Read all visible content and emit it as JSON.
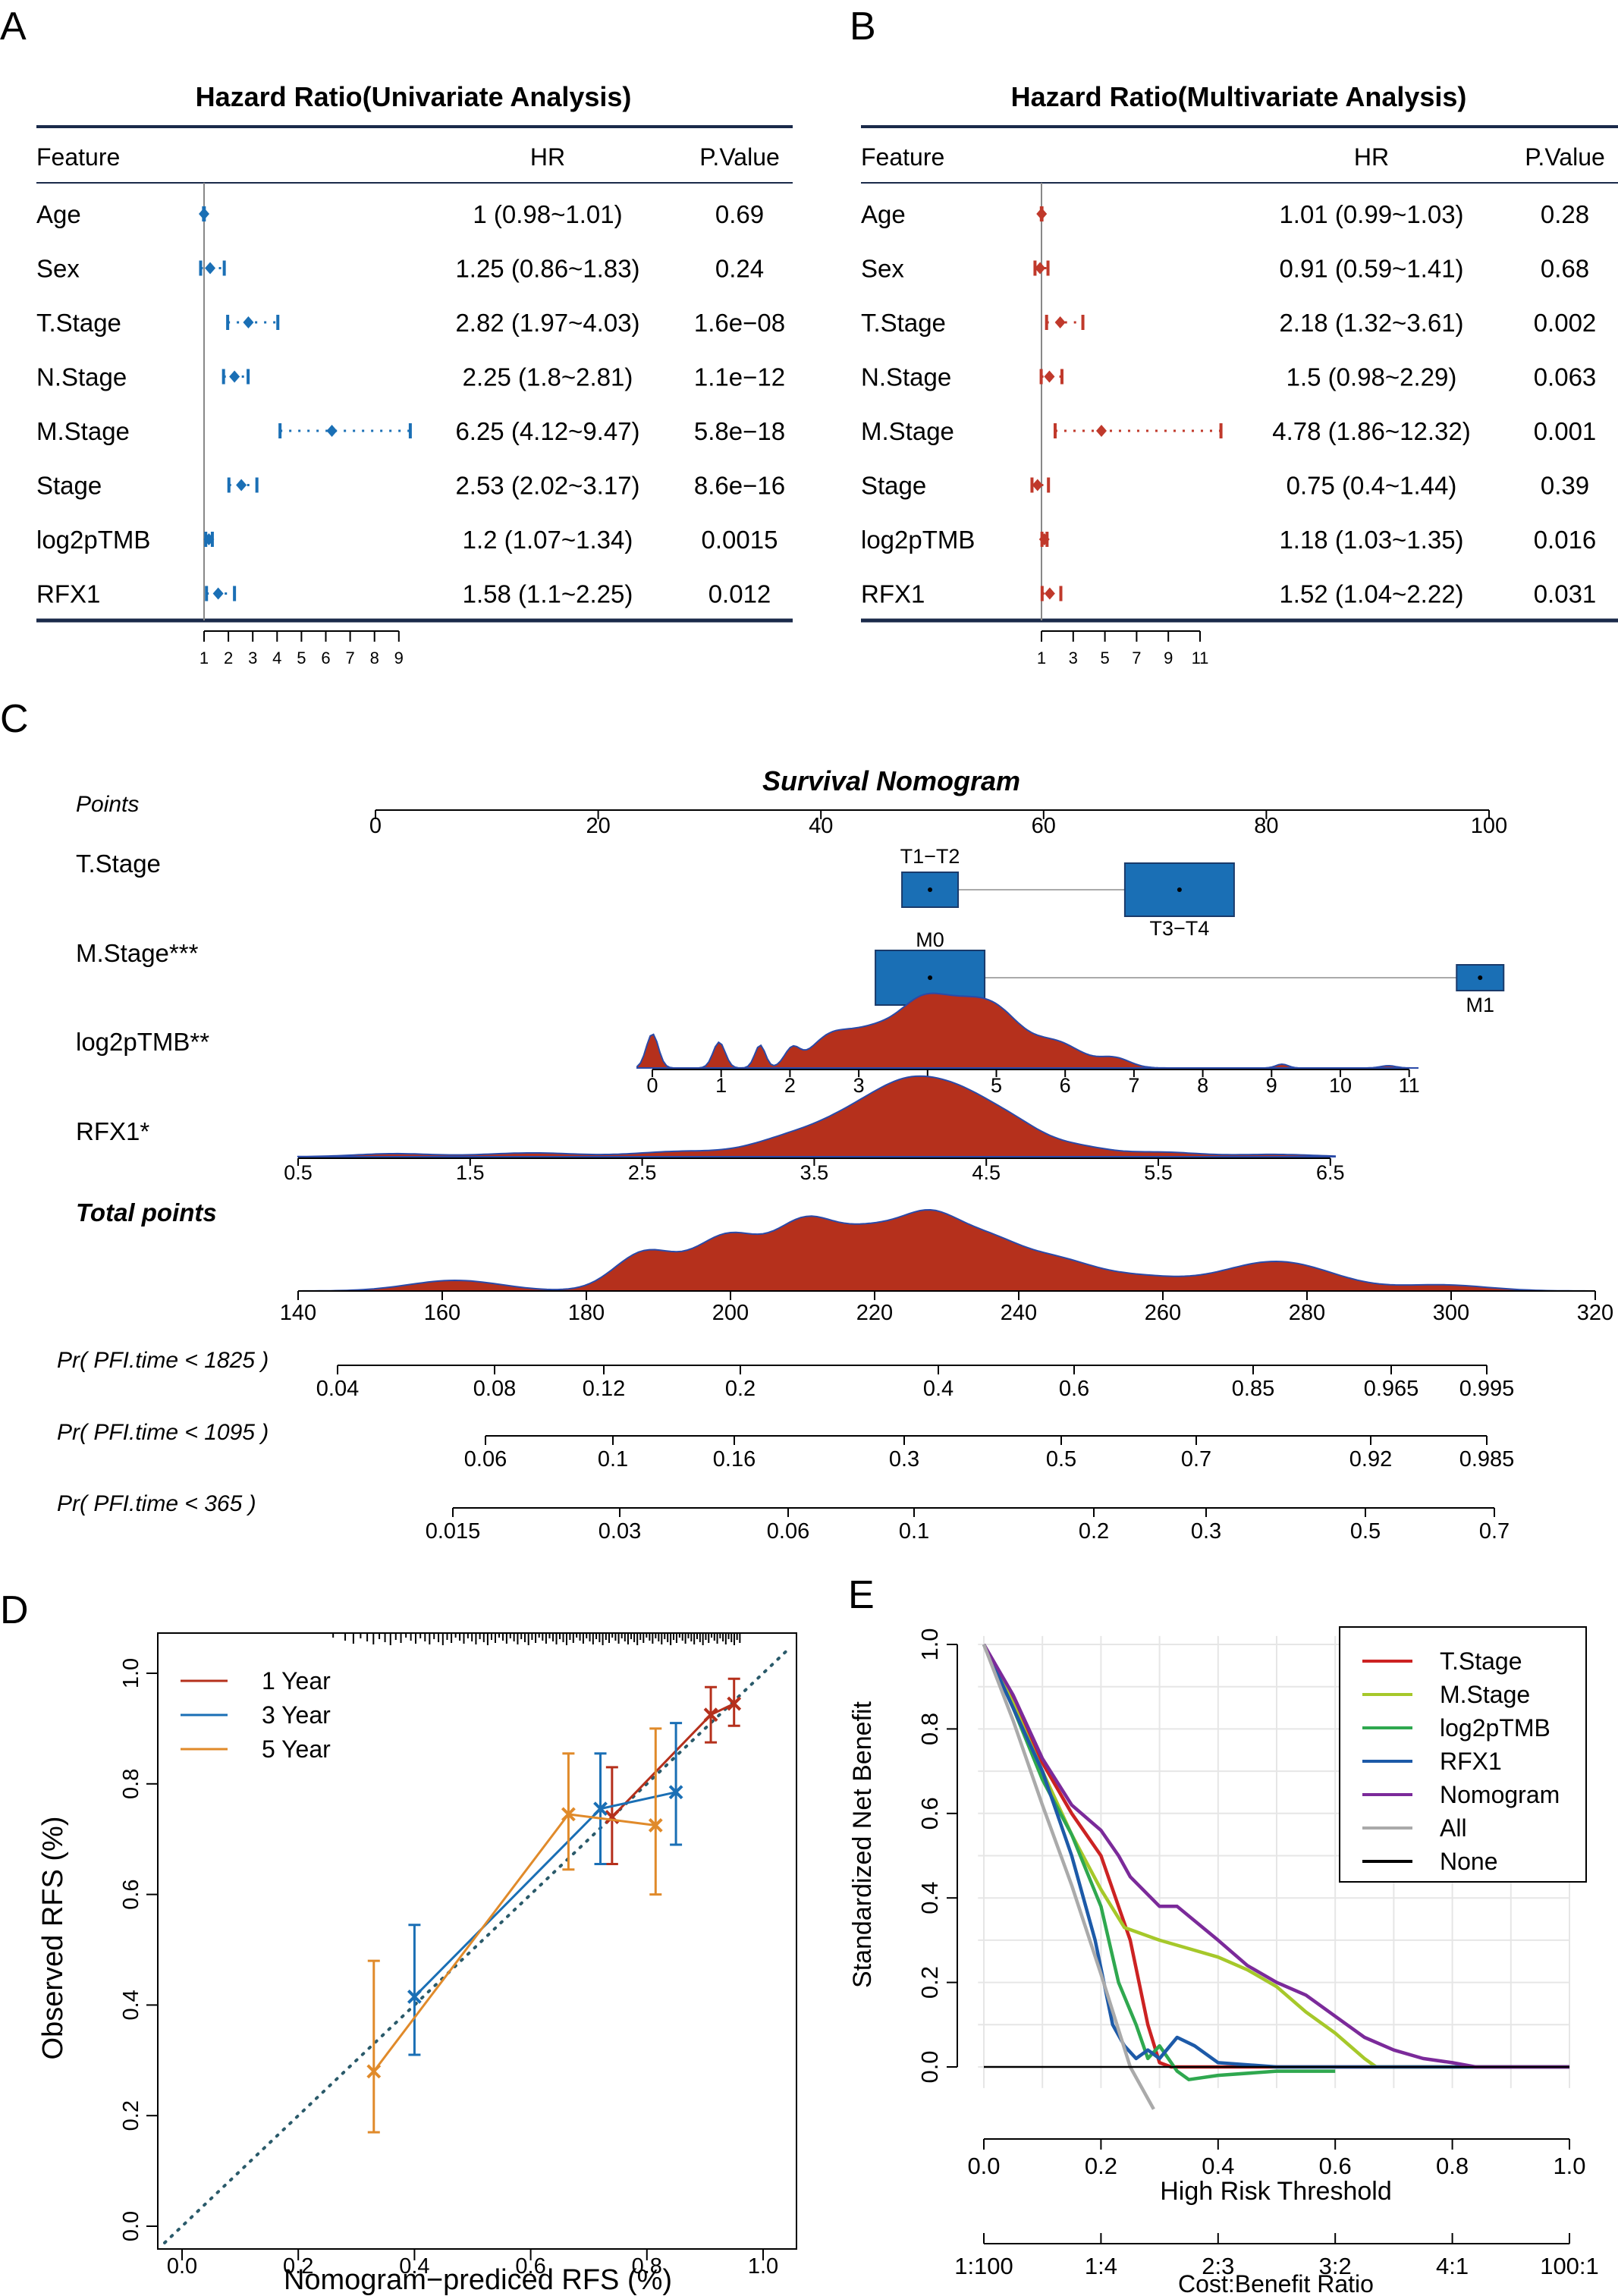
{
  "panel_letters": [
    "A",
    "B",
    "C",
    "D",
    "E"
  ],
  "chart_data": [
    {
      "type": "table",
      "panel": "A",
      "title": "Hazard Ratio(Univariate Analysis)",
      "columns": [
        "Feature",
        "HR",
        "P.Value"
      ],
      "rows": [
        {
          "feature": "Age",
          "hr_text": "1 (0.98~1.01)",
          "p": "0.69",
          "hr": 1.0,
          "lo": 0.98,
          "hi": 1.01
        },
        {
          "feature": "Sex",
          "hr_text": "1.25 (0.86~1.83)",
          "p": "0.24",
          "hr": 1.25,
          "lo": 0.86,
          "hi": 1.83
        },
        {
          "feature": "T.Stage",
          "hr_text": "2.82 (1.97~4.03)",
          "p": "1.6e−08",
          "hr": 2.82,
          "lo": 1.97,
          "hi": 4.03
        },
        {
          "feature": "N.Stage",
          "hr_text": "2.25 (1.8~2.81)",
          "p": "1.1e−12",
          "hr": 2.25,
          "lo": 1.8,
          "hi": 2.81
        },
        {
          "feature": "M.Stage",
          "hr_text": "6.25 (4.12~9.47)",
          "p": "5.8e−18",
          "hr": 6.25,
          "lo": 4.12,
          "hi": 9.47
        },
        {
          "feature": "Stage",
          "hr_text": "2.53 (2.02~3.17)",
          "p": "8.6e−16",
          "hr": 2.53,
          "lo": 2.02,
          "hi": 3.17
        },
        {
          "feature": "log2pTMB",
          "hr_text": "1.2 (1.07~1.34)",
          "p": "0.0015",
          "hr": 1.2,
          "lo": 1.07,
          "hi": 1.34
        },
        {
          "feature": "RFX1",
          "hr_text": "1.58 (1.1~2.25)",
          "p": "0.012",
          "hr": 1.58,
          "lo": 1.1,
          "hi": 2.25
        }
      ],
      "xticks": [
        1,
        2,
        3,
        4,
        5,
        6,
        7,
        8,
        9
      ],
      "color": "#1a6fb5"
    },
    {
      "type": "table",
      "panel": "B",
      "title": "Hazard Ratio(Multivariate Analysis)",
      "columns": [
        "Feature",
        "HR",
        "P.Value"
      ],
      "rows": [
        {
          "feature": "Age",
          "hr_text": "1.01 (0.99~1.03)",
          "p": "0.28",
          "hr": 1.01,
          "lo": 0.99,
          "hi": 1.03
        },
        {
          "feature": "Sex",
          "hr_text": "0.91 (0.59~1.41)",
          "p": "0.68",
          "hr": 0.91,
          "lo": 0.59,
          "hi": 1.41
        },
        {
          "feature": "T.Stage",
          "hr_text": "2.18 (1.32~3.61)",
          "p": "0.002",
          "hr": 2.18,
          "lo": 1.32,
          "hi": 3.61
        },
        {
          "feature": "N.Stage",
          "hr_text": "1.5 (0.98~2.29)",
          "p": "0.063",
          "hr": 1.5,
          "lo": 0.98,
          "hi": 2.29
        },
        {
          "feature": "M.Stage",
          "hr_text": "4.78 (1.86~12.32)",
          "p": "0.001",
          "hr": 4.78,
          "lo": 1.86,
          "hi": 12.32
        },
        {
          "feature": "Stage",
          "hr_text": "0.75 (0.4~1.44)",
          "p": "0.39",
          "hr": 0.75,
          "lo": 0.4,
          "hi": 1.44
        },
        {
          "feature": "log2pTMB",
          "hr_text": "1.18 (1.03~1.35)",
          "p": "0.016",
          "hr": 1.18,
          "lo": 1.03,
          "hi": 1.35
        },
        {
          "feature": "RFX1",
          "hr_text": "1.52 (1.04~2.22)",
          "p": "0.031",
          "hr": 1.52,
          "lo": 1.04,
          "hi": 2.22
        }
      ],
      "xticks": [
        1,
        3,
        5,
        7,
        9,
        11
      ],
      "color": "#c0392b"
    },
    {
      "type": "nomogram",
      "panel": "C",
      "title": "Survival Nomogram",
      "points_label": "Points",
      "points_ticks": [
        0,
        20,
        40,
        60,
        80,
        100
      ],
      "tstage": {
        "label": "T.Stage",
        "levels": [
          {
            "name": "T1−T2",
            "points": 49.8
          },
          {
            "name": "T3−T4",
            "points": 72.2
          }
        ]
      },
      "mstage": {
        "label": "M.Stage***",
        "levels": [
          {
            "name": "M0",
            "points": 49.8
          },
          {
            "name": "M1",
            "points": 99.2
          }
        ]
      },
      "log2ptmb": {
        "label": "log2pTMB**",
        "ticks": [
          0,
          1,
          2,
          3,
          4,
          5,
          6,
          7,
          8,
          9,
          10,
          11
        ]
      },
      "rfx1": {
        "label": "RFX1*",
        "ticks": [
          "0.5",
          "1.5",
          "2.5",
          "3.5",
          "4.5",
          "5.5",
          "6.5"
        ]
      },
      "total_label": "Total points",
      "total_ticks": [
        140,
        160,
        180,
        200,
        220,
        240,
        260,
        280,
        300,
        320
      ],
      "prob_scales": [
        {
          "label": "Pr( PFI.time < 1825 )",
          "ticks": [
            "0.04",
            "0.08",
            "0.12",
            "0.2",
            "0.4",
            "0.6",
            "0.85",
            "0.965",
            "0.995"
          ]
        },
        {
          "label": "Pr( PFI.time < 1095 )",
          "ticks": [
            "0.06",
            "0.1",
            "0.16",
            "0.3",
            "0.5",
            "0.7",
            "0.92",
            "0.985"
          ]
        },
        {
          "label": "Pr( PFI.time < 365 )",
          "ticks": [
            "0.015",
            "0.03",
            "0.06",
            "0.1",
            "0.2",
            "0.3",
            "0.5",
            "0.7"
          ]
        }
      ],
      "box_color": "#1a6fb5",
      "density_color": "#b5301c"
    },
    {
      "type": "line",
      "panel": "D",
      "xlabel": "Nomogram−prediced RFS (%)",
      "ylabel": "Observed RFS (%)",
      "xlim": [
        -0.03,
        1.04
      ],
      "ylim": [
        -0.03,
        1.04
      ],
      "ticks": [
        "0.0",
        "0.2",
        "0.4",
        "0.6",
        "0.8",
        "1.0"
      ],
      "series": [
        {
          "name": "1 Year",
          "color": "#b5301c",
          "points": [
            {
              "x": 0.74,
              "y": 0.74,
              "lo": 0.655,
              "hi": 0.83
            },
            {
              "x": 0.91,
              "y": 0.925,
              "lo": 0.875,
              "hi": 0.975
            },
            {
              "x": 0.95,
              "y": 0.945,
              "lo": 0.905,
              "hi": 0.99
            }
          ]
        },
        {
          "name": "3 Year",
          "color": "#1a6fb5",
          "points": [
            {
              "x": 0.4,
              "y": 0.415,
              "lo": 0.31,
              "hi": 0.545
            },
            {
              "x": 0.72,
              "y": 0.755,
              "lo": 0.655,
              "hi": 0.855
            },
            {
              "x": 0.85,
              "y": 0.785,
              "lo": 0.69,
              "hi": 0.91
            }
          ]
        },
        {
          "name": "5 Year",
          "color": "#e08a2a",
          "points": [
            {
              "x": 0.33,
              "y": 0.28,
              "lo": 0.17,
              "hi": 0.48
            },
            {
              "x": 0.665,
              "y": 0.745,
              "lo": 0.645,
              "hi": 0.855
            },
            {
              "x": 0.815,
              "y": 0.725,
              "lo": 0.6,
              "hi": 0.9
            }
          ]
        }
      ]
    },
    {
      "type": "line",
      "panel": "E",
      "xlabel": "High Risk Threshold",
      "ylabel": "Standardized Net Benefit",
      "x2label": "Cost:Benefit Ratio",
      "xticks": [
        "0.0",
        "0.2",
        "0.4",
        "0.6",
        "0.8",
        "1.0"
      ],
      "yticks": [
        "0.0",
        "0.2",
        "0.4",
        "0.6",
        "0.8",
        "1.0"
      ],
      "x2ticks": [
        "1:100",
        "1:4",
        "2:3",
        "3:2",
        "4:1",
        "100:1"
      ],
      "series": [
        {
          "name": "T.Stage",
          "color": "#cc2222",
          "x": [
            0,
            0.05,
            0.1,
            0.15,
            0.2,
            0.25,
            0.28,
            0.3,
            0.32,
            0.4,
            0.6,
            1.0
          ],
          "y": [
            1,
            0.87,
            0.72,
            0.6,
            0.5,
            0.3,
            0.1,
            0.01,
            0,
            0,
            0,
            0
          ]
        },
        {
          "name": "M.Stage",
          "color": "#a6c82a",
          "x": [
            0,
            0.05,
            0.1,
            0.15,
            0.2,
            0.24,
            0.3,
            0.35,
            0.4,
            0.45,
            0.5,
            0.55,
            0.6,
            0.65,
            0.67,
            1.0
          ],
          "y": [
            1,
            0.86,
            0.7,
            0.55,
            0.42,
            0.33,
            0.3,
            0.28,
            0.26,
            0.23,
            0.19,
            0.13,
            0.08,
            0.02,
            0,
            0
          ]
        },
        {
          "name": "log2pTMB",
          "color": "#2fa84f",
          "x": [
            0,
            0.05,
            0.1,
            0.15,
            0.2,
            0.23,
            0.26,
            0.28,
            0.3,
            0.33,
            0.35,
            0.4,
            0.5,
            0.6
          ],
          "y": [
            1,
            0.85,
            0.68,
            0.55,
            0.38,
            0.2,
            0.1,
            0.02,
            0.05,
            -0.01,
            -0.03,
            -0.02,
            -0.01,
            -0.01
          ]
        },
        {
          "name": "RFX1",
          "color": "#1d5aa8",
          "x": [
            0,
            0.05,
            0.1,
            0.15,
            0.19,
            0.22,
            0.24,
            0.26,
            0.28,
            0.3,
            0.33,
            0.36,
            0.4,
            0.5,
            1.0
          ],
          "y": [
            1,
            0.85,
            0.7,
            0.5,
            0.3,
            0.1,
            0.05,
            0.02,
            0.04,
            0.02,
            0.07,
            0.05,
            0.01,
            0.0,
            0
          ]
        },
        {
          "name": "Nomogram",
          "color": "#7b2a9a",
          "x": [
            0,
            0.05,
            0.1,
            0.15,
            0.2,
            0.23,
            0.25,
            0.3,
            0.33,
            0.4,
            0.45,
            0.5,
            0.55,
            0.6,
            0.65,
            0.7,
            0.75,
            0.8,
            0.84,
            1.0
          ],
          "y": [
            1,
            0.88,
            0.73,
            0.62,
            0.56,
            0.5,
            0.45,
            0.38,
            0.38,
            0.3,
            0.24,
            0.2,
            0.17,
            0.12,
            0.07,
            0.04,
            0.02,
            0.01,
            0,
            0
          ]
        },
        {
          "name": "All",
          "color": "#aaaaaa",
          "x": [
            0,
            0.05,
            0.1,
            0.15,
            0.2,
            0.25,
            0.29
          ],
          "y": [
            1,
            0.82,
            0.62,
            0.43,
            0.22,
            0,
            -0.1
          ]
        },
        {
          "name": "None",
          "color": "#000000",
          "x": [
            0,
            1
          ],
          "y": [
            0,
            0
          ]
        }
      ]
    }
  ]
}
